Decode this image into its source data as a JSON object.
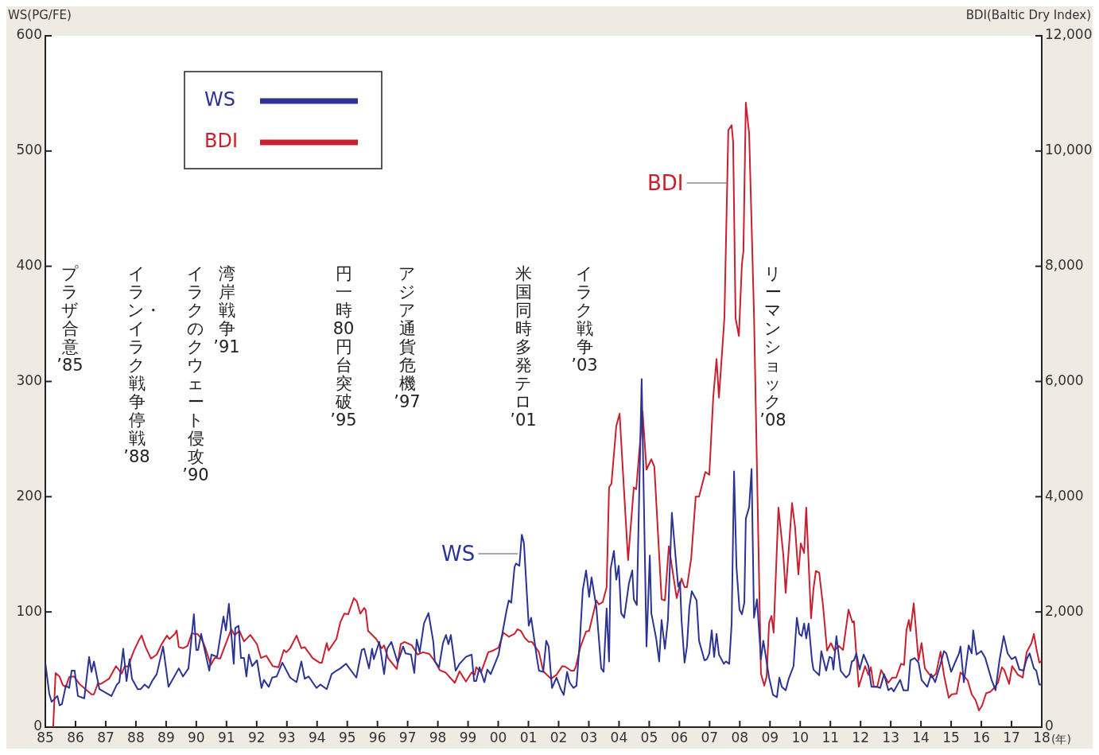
{
  "chart_data": {
    "type": "line",
    "ylabel": "WS(PG/FE)",
    "y2label": "BDI(Baltic Dry Index)",
    "xlabel": "(年)",
    "xlim": [
      1985,
      2018
    ],
    "xticks": [
      {
        "value": 1985,
        "label": "85"
      },
      {
        "value": 1986,
        "label": "86"
      },
      {
        "value": 1987,
        "label": "87"
      },
      {
        "value": 1988,
        "label": "88"
      },
      {
        "value": 1989,
        "label": "89"
      },
      {
        "value": 1990,
        "label": "90"
      },
      {
        "value": 1991,
        "label": "91"
      },
      {
        "value": 1992,
        "label": "92"
      },
      {
        "value": 1993,
        "label": "93"
      },
      {
        "value": 1994,
        "label": "94"
      },
      {
        "value": 1995,
        "label": "95"
      },
      {
        "value": 1996,
        "label": "96"
      },
      {
        "value": 1997,
        "label": "97"
      },
      {
        "value": 1998,
        "label": "98"
      },
      {
        "value": 1999,
        "label": "99"
      },
      {
        "value": 2000,
        "label": "00"
      },
      {
        "value": 2001,
        "label": "01"
      },
      {
        "value": 2002,
        "label": "02"
      },
      {
        "value": 2003,
        "label": "03"
      },
      {
        "value": 2004,
        "label": "04"
      },
      {
        "value": 2005,
        "label": "05"
      },
      {
        "value": 2006,
        "label": "06"
      },
      {
        "value": 2007,
        "label": "07"
      },
      {
        "value": 2008,
        "label": "08"
      },
      {
        "value": 2009,
        "label": "09"
      },
      {
        "value": 2010,
        "label": "10"
      },
      {
        "value": 2011,
        "label": "11"
      },
      {
        "value": 2012,
        "label": "12"
      },
      {
        "value": 2013,
        "label": "13"
      },
      {
        "value": 2014,
        "label": "14"
      },
      {
        "value": 2015,
        "label": "15"
      },
      {
        "value": 2016,
        "label": "16"
      },
      {
        "value": 2017,
        "label": "17"
      },
      {
        "value": 2018,
        "label": "18"
      }
    ],
    "ylim": [
      0,
      600
    ],
    "yticks": [
      0,
      100,
      200,
      300,
      400,
      500,
      600
    ],
    "y2lim": [
      0,
      12000
    ],
    "y2ticks": [
      0,
      {
        "value": 2000,
        "label": "2,000"
      },
      {
        "value": 4000,
        "label": "4,000"
      },
      {
        "value": 6000,
        "label": "6,000"
      },
      {
        "value": 8000,
        "label": "8,000"
      },
      {
        "value": 10000,
        "label": "10,000"
      },
      {
        "value": 12000,
        "label": "12,000"
      }
    ],
    "grid": false,
    "legend": "top left",
    "marker": "none",
    "line_style": "solid",
    "series": [
      {
        "name": "WS",
        "color": "#2b3393",
        "x": [
          1985.0,
          1985.13,
          1985.21,
          1985.4,
          1985.47,
          1985.55,
          1985.68,
          1985.79,
          1985.87,
          1985.97,
          1986.08,
          1986.29,
          1986.45,
          1986.53,
          1986.61,
          1986.79,
          1987.19,
          1987.37,
          1987.45,
          1987.58,
          1987.69,
          1987.79,
          1987.87,
          1988.06,
          1988.16,
          1988.29,
          1988.42,
          1988.56,
          1988.69,
          1988.9,
          1989.08,
          1989.42,
          1989.56,
          1989.74,
          1989.92,
          1990.0,
          1990.06,
          1990.16,
          1990.43,
          1990.5,
          1990.69,
          1990.9,
          1990.98,
          1991.08,
          1991.24,
          1991.29,
          1991.4,
          1991.48,
          1991.58,
          1991.66,
          1991.74,
          1991.85,
          1992.01,
          1992.16,
          1992.24,
          1992.4,
          1992.51,
          1992.66,
          1992.85,
          1993.11,
          1993.32,
          1993.48,
          1993.59,
          1993.72,
          1993.98,
          1994.11,
          1994.32,
          1994.48,
          1994.64,
          1994.77,
          1994.96,
          1995.3,
          1995.48,
          1995.56,
          1995.72,
          1995.82,
          1995.88,
          1996.06,
          1996.22,
          1996.32,
          1996.46,
          1996.67,
          1996.85,
          1996.93,
          1997.11,
          1997.22,
          1997.3,
          1997.4,
          1997.54,
          1997.69,
          1997.85,
          1997.9,
          1998.04,
          1998.17,
          1998.27,
          1998.35,
          1998.43,
          1998.59,
          1998.72,
          1998.93,
          1999.12,
          1999.2,
          1999.27,
          1999.38,
          1999.54,
          1999.64,
          1999.75,
          2000.01,
          2000.28,
          2000.35,
          2000.43,
          2000.54,
          2000.59,
          2000.7,
          2000.78,
          2000.85,
          2001.01,
          2001.09,
          2001.28,
          2001.35,
          2001.49,
          2001.59,
          2001.67,
          2001.78,
          2001.93,
          2002.07,
          2002.17,
          2002.28,
          2002.36,
          2002.49,
          2002.59,
          2002.7,
          2002.8,
          2002.91,
          2003.01,
          2003.09,
          2003.25,
          2003.41,
          2003.49,
          2003.59,
          2003.67,
          2003.72,
          2003.83,
          2003.91,
          2003.99,
          2004.07,
          2004.17,
          2004.33,
          2004.44,
          2004.49,
          2004.59,
          2004.75,
          2004.91,
          2005.02,
          2005.07,
          2005.23,
          2005.33,
          2005.41,
          2005.52,
          2005.62,
          2005.75,
          2005.88,
          2005.96,
          2006.02,
          2006.07,
          2006.17,
          2006.25,
          2006.33,
          2006.41,
          2006.57,
          2006.65,
          2006.83,
          2006.91,
          2006.99,
          2007.07,
          2007.15,
          2007.23,
          2007.31,
          2007.47,
          2007.54,
          2007.65,
          2007.73,
          2007.81,
          2007.89,
          2007.99,
          2008.07,
          2008.15,
          2008.2,
          2008.31,
          2008.39,
          2008.47,
          2008.57,
          2008.7,
          2008.78,
          2008.97,
          2009.1,
          2009.23,
          2009.31,
          2009.39,
          2009.52,
          2009.62,
          2009.78,
          2009.89,
          2009.97,
          2010.05,
          2010.13,
          2010.2,
          2010.28,
          2010.39,
          2010.44,
          2010.63,
          2010.7,
          2010.86,
          2010.97,
          2011.05,
          2011.1,
          2011.2,
          2011.34,
          2011.52,
          2011.63,
          2011.71,
          2011.78,
          2011.86,
          2011.97,
          2012.1,
          2012.26,
          2012.36,
          2012.55,
          2012.65,
          2012.78,
          2012.92,
          2013.02,
          2013.1,
          2013.31,
          2013.42,
          2013.57,
          2013.65,
          2013.79,
          2013.92,
          2014.02,
          2014.21,
          2014.34,
          2014.47,
          2014.65,
          2014.76,
          2014.84,
          2015.0,
          2015.16,
          2015.26,
          2015.31,
          2015.42,
          2015.58,
          2015.68,
          2015.73,
          2015.84,
          2016.0,
          2016.13,
          2016.34,
          2016.47,
          2016.6,
          2016.74,
          2016.87,
          2017.0,
          2017.13,
          2017.26,
          2017.39,
          2017.5,
          2017.6,
          2017.74,
          2017.82,
          2017.92,
          2018.0
        ],
        "values": [
          56,
          29,
          22,
          27,
          19,
          20,
          36,
          34,
          49,
          49,
          27,
          25,
          61,
          48,
          57,
          33,
          27,
          37,
          39,
          68,
          40,
          59,
          42,
          33,
          33,
          37,
          34,
          41,
          46,
          70,
          35,
          51,
          44,
          51,
          98,
          67,
          67,
          81,
          49,
          63,
          61,
          96,
          84,
          107,
          55,
          86,
          88,
          60,
          60,
          44,
          63,
          53,
          58,
          34,
          41,
          35,
          43,
          44,
          56,
          43,
          39,
          57,
          42,
          44,
          34,
          37,
          33,
          46,
          49,
          51,
          55,
          43,
          67,
          68,
          51,
          68,
          59,
          74,
          46,
          68,
          74,
          56,
          70,
          64,
          63,
          47,
          76,
          65,
          90,
          99,
          74,
          57,
          52,
          73,
          80,
          72,
          80,
          49,
          55,
          61,
          63,
          40,
          40,
          52,
          39,
          50,
          46,
          63,
          102,
          110,
          108,
          139,
          142,
          140,
          167,
          160,
          88,
          95,
          60,
          49,
          48,
          75,
          70,
          34,
          43,
          33,
          28,
          48,
          39,
          34,
          36,
          74,
          119,
          136,
          113,
          130,
          104,
          51,
          48,
          103,
          57,
          137,
          153,
          128,
          140,
          99,
          95,
          125,
          136,
          111,
          106,
          302,
          70,
          149,
          99,
          77,
          57,
          93,
          68,
          93,
          186,
          146,
          122,
          126,
          93,
          56,
          70,
          104,
          118,
          110,
          75,
          58,
          59,
          64,
          84,
          61,
          81,
          63,
          55,
          57,
          55,
          90,
          222,
          139,
          102,
          98,
          108,
          181,
          191,
          224,
          95,
          111,
          59,
          75,
          43,
          28,
          26,
          43,
          35,
          32,
          42,
          53,
          95,
          81,
          79,
          90,
          77,
          90,
          58,
          50,
          45,
          66,
          49,
          61,
          60,
          50,
          79,
          49,
          43,
          46,
          57,
          58,
          64,
          50,
          63,
          53,
          35,
          35,
          34,
          46,
          32,
          34,
          31,
          41,
          32,
          32,
          58,
          60,
          56,
          41,
          35,
          46,
          39,
          55,
          66,
          64,
          48,
          58,
          64,
          70,
          39,
          71,
          64,
          84,
          63,
          66,
          60,
          41,
          32,
          58,
          79,
          64,
          59,
          61,
          50,
          49,
          59,
          64,
          51,
          49,
          37,
          37
        ]
      },
      {
        "name": "BDI",
        "color": "#c8202f",
        "axis": "y2",
        "x": [
          1985.26,
          1985.34,
          1985.47,
          1985.58,
          1985.68,
          1985.79,
          1985.95,
          1986.13,
          1986.53,
          1986.61,
          1986.74,
          1986.84,
          1987.11,
          1987.34,
          1987.53,
          1987.63,
          1987.74,
          1987.92,
          1988.11,
          1988.19,
          1988.32,
          1988.5,
          1988.69,
          1988.85,
          1989.03,
          1989.11,
          1989.29,
          1989.35,
          1989.42,
          1989.56,
          1989.71,
          1989.85,
          1989.95,
          1990.03,
          1990.16,
          1990.29,
          1990.48,
          1990.61,
          1990.79,
          1990.95,
          1991.16,
          1991.27,
          1991.43,
          1991.58,
          1991.79,
          1992.01,
          1992.14,
          1992.32,
          1992.53,
          1992.72,
          1992.9,
          1992.98,
          1993.11,
          1993.32,
          1993.48,
          1993.59,
          1993.85,
          1994.08,
          1994.16,
          1994.32,
          1994.38,
          1994.64,
          1994.77,
          1994.9,
          1995.03,
          1995.22,
          1995.32,
          1995.43,
          1995.56,
          1995.61,
          1995.69,
          1995.96,
          1996.14,
          1996.22,
          1996.35,
          1996.64,
          1996.77,
          1996.9,
          1997.14,
          1997.33,
          1997.51,
          1997.72,
          1997.93,
          1998.06,
          1998.25,
          1998.56,
          1998.72,
          1998.93,
          1999.12,
          1999.22,
          1999.27,
          1999.43,
          1999.67,
          1999.83,
          2000.01,
          2000.17,
          2000.35,
          2000.54,
          2000.64,
          2000.75,
          2000.88,
          2001.01,
          2001.12,
          2001.35,
          2001.49,
          2001.75,
          2001.93,
          2002.12,
          2002.22,
          2002.41,
          2002.51,
          2002.57,
          2002.72,
          2002.91,
          2003.01,
          2003.25,
          2003.33,
          2003.46,
          2003.59,
          2003.67,
          2003.75,
          2003.91,
          2004.02,
          2004.09,
          2004.3,
          2004.49,
          2004.57,
          2004.78,
          2004.91,
          2005.07,
          2005.17,
          2005.41,
          2005.52,
          2005.65,
          2005.91,
          2006.07,
          2006.17,
          2006.25,
          2006.39,
          2006.54,
          2006.65,
          2006.86,
          2006.99,
          2007.12,
          2007.23,
          2007.31,
          2007.49,
          2007.62,
          2007.73,
          2007.78,
          2007.86,
          2007.97,
          2008.07,
          2008.12,
          2008.2,
          2008.31,
          2008.47,
          2008.7,
          2008.81,
          2008.89,
          2008.97,
          2009.05,
          2009.12,
          2009.28,
          2009.44,
          2009.52,
          2009.73,
          2009.83,
          2009.94,
          2010.02,
          2010.13,
          2010.2,
          2010.36,
          2010.44,
          2010.52,
          2010.63,
          2010.76,
          2010.89,
          2011.02,
          2011.13,
          2011.28,
          2011.42,
          2011.6,
          2011.73,
          2011.78,
          2011.86,
          2011.94,
          2012.15,
          2012.26,
          2012.34,
          2012.44,
          2012.55,
          2012.68,
          2012.92,
          2013.05,
          2013.18,
          2013.34,
          2013.44,
          2013.52,
          2013.6,
          2013.65,
          2013.76,
          2013.92,
          2014.02,
          2014.13,
          2014.36,
          2014.5,
          2014.65,
          2014.76,
          2014.92,
          2015.02,
          2015.18,
          2015.31,
          2015.55,
          2015.68,
          2015.81,
          2015.92,
          2016.02,
          2016.16,
          2016.29,
          2016.42,
          2016.55,
          2016.68,
          2016.76,
          2016.92,
          2017.02,
          2017.21,
          2017.37,
          2017.5,
          2017.66,
          2017.74,
          2017.82,
          2017.92,
          2018.0
        ],
        "values": [
          0,
          940,
          880,
          730,
          700,
          870,
          880,
          750,
          570,
          570,
          760,
          750,
          840,
          1060,
          930,
          1060,
          1050,
          1310,
          1520,
          1590,
          1390,
          1190,
          1260,
          1440,
          1590,
          1530,
          1620,
          1680,
          1390,
          1370,
          1410,
          1630,
          1620,
          1620,
          1550,
          1390,
          1080,
          1200,
          1190,
          1410,
          1700,
          1600,
          1670,
          1490,
          1600,
          1440,
          1200,
          1240,
          1060,
          1040,
          1340,
          1300,
          1370,
          1590,
          1370,
          1390,
          1200,
          1120,
          1120,
          1460,
          1330,
          1530,
          1820,
          1970,
          1960,
          2240,
          2180,
          1970,
          2070,
          2030,
          1670,
          1530,
          1370,
          1420,
          1200,
          1010,
          1440,
          1480,
          1420,
          1260,
          1300,
          1270,
          1120,
          990,
          950,
          770,
          970,
          790,
          950,
          910,
          1040,
          950,
          1300,
          1330,
          1380,
          1640,
          1570,
          1620,
          1700,
          1670,
          1550,
          1480,
          1480,
          1300,
          970,
          840,
          910,
          1060,
          1050,
          980,
          980,
          1050,
          1390,
          1660,
          1670,
          2200,
          2130,
          2170,
          2430,
          4160,
          4230,
          5230,
          5440,
          4790,
          2900,
          4160,
          4130,
          5480,
          4470,
          4650,
          4520,
          2220,
          2200,
          3140,
          2240,
          2580,
          2430,
          2430,
          2930,
          4000,
          4000,
          4430,
          4380,
          5720,
          6390,
          5720,
          7100,
          10360,
          10450,
          10150,
          7100,
          6790,
          8040,
          8260,
          10840,
          10300,
          7170,
          930,
          720,
          880,
          1810,
          1930,
          1640,
          3810,
          3000,
          2330,
          3890,
          3470,
          2650,
          3190,
          3020,
          3810,
          1890,
          2400,
          2710,
          2680,
          2090,
          1330,
          1460,
          1330,
          1410,
          1340,
          2040,
          1820,
          1840,
          1260,
          700,
          1060,
          910,
          1040,
          700,
          700,
          990,
          770,
          860,
          860,
          1100,
          1080,
          1690,
          1860,
          1670,
          2150,
          1160,
          1460,
          1020,
          860,
          930,
          1310,
          910,
          510,
          570,
          580,
          950,
          810,
          570,
          470,
          290,
          370,
          590,
          610,
          680,
          770,
          1040,
          990,
          750,
          1060,
          910,
          860,
          1300,
          1460,
          1620,
          1370,
          1120,
          1150
        ]
      }
    ],
    "annotations": [
      "プラザ合意’85",
      "イラン・イラク戦争停戦’88",
      "イラクのクウェート侵攻’90",
      "湾岸戦争’91",
      "円一時80円台突破’95",
      "アジア通貨危機’97",
      "米国同時多発テロ’01",
      "イラク戦争’03",
      "リーマンショック’08"
    ]
  }
}
